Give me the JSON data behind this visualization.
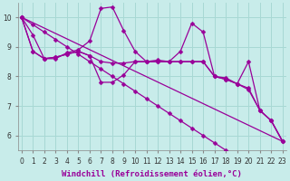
{
  "xlabel": "Windchill (Refroidissement éolien,°C)",
  "background_color": "#c8ecea",
  "grid_color": "#a8d8d4",
  "line_color": "#990099",
  "x_ticks": [
    0,
    1,
    2,
    3,
    4,
    5,
    6,
    7,
    8,
    9,
    10,
    11,
    12,
    13,
    14,
    15,
    16,
    17,
    18,
    19,
    20,
    21,
    22,
    23
  ],
  "y_ticks": [
    6,
    7,
    8,
    9,
    10
  ],
  "xlim": [
    -0.3,
    23.3
  ],
  "ylim": [
    5.5,
    10.5
  ],
  "series": [
    [
      10.0,
      9.75,
      9.5,
      9.25,
      9.0,
      8.75,
      8.5,
      8.25,
      8.0,
      7.75,
      7.5,
      7.25,
      7.0,
      6.75,
      6.5,
      6.25,
      6.0,
      5.75,
      5.5,
      null,
      null,
      null,
      null,
      null
    ],
    [
      10.0,
      9.4,
      8.6,
      8.6,
      8.8,
      8.9,
      9.2,
      10.3,
      10.35,
      9.55,
      8.85,
      8.5,
      8.55,
      8.5,
      8.85,
      9.8,
      9.5,
      8.0,
      7.95,
      7.75,
      7.6,
      6.85,
      6.5,
      5.8
    ],
    [
      10.0,
      8.85,
      8.6,
      8.65,
      8.75,
      8.85,
      8.7,
      7.8,
      7.8,
      8.05,
      8.5,
      8.5,
      8.5,
      8.5,
      8.5,
      8.5,
      8.5,
      8.0,
      7.9,
      7.75,
      7.55,
      6.85,
      6.5,
      5.8
    ],
    [
      10.0,
      8.85,
      8.6,
      8.65,
      8.75,
      8.85,
      8.7,
      8.5,
      8.45,
      8.45,
      8.5,
      8.5,
      8.5,
      8.5,
      8.5,
      8.5,
      8.5,
      8.0,
      7.9,
      7.75,
      8.5,
      6.85,
      6.5,
      5.8
    ]
  ],
  "straight_line": [
    [
      0,
      10.0
    ],
    [
      23,
      5.8
    ]
  ],
  "marker": "D",
  "markersize": 2.5,
  "linewidth": 0.9,
  "tick_fontsize": 5.5,
  "label_fontsize": 6.5
}
